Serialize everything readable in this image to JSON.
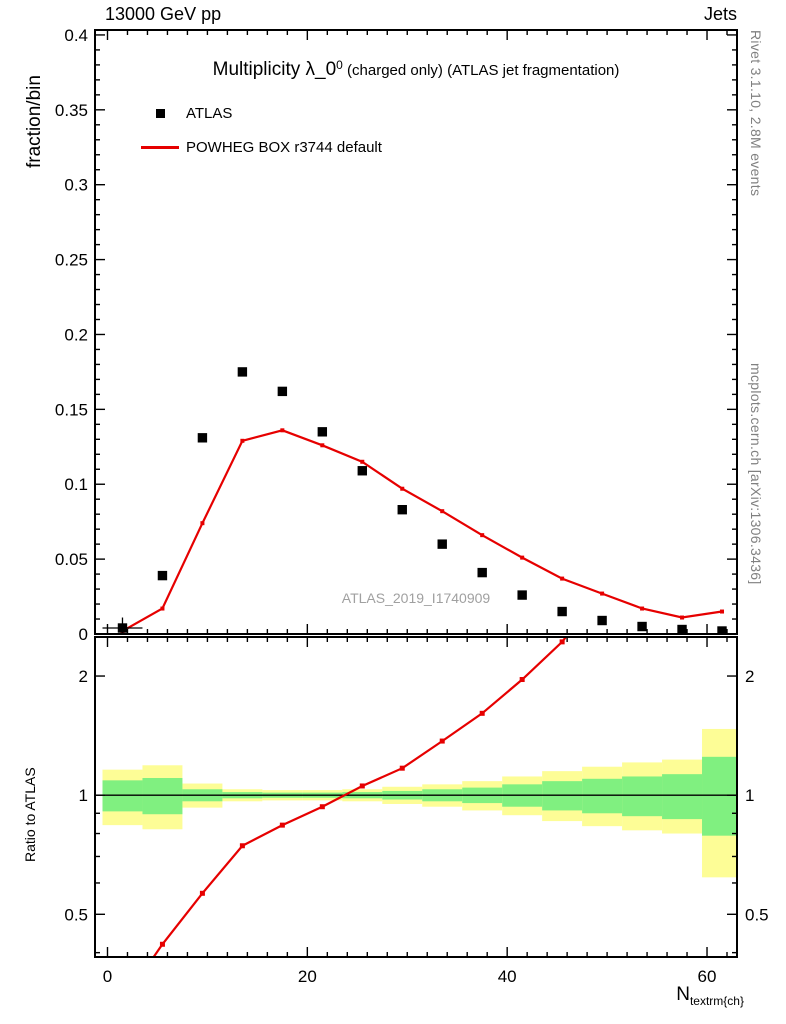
{
  "header": {
    "left_label": "13000 GeV pp",
    "right_label": "Jets"
  },
  "titles": {
    "main_prefix": "Multiplicity λ_0",
    "main_sup": "0",
    "main_suffix": " (charged only) (ATLAS jet fragmentation)",
    "watermark": "ATLAS_2019_I1740909"
  },
  "axes": {
    "y_label": "fraction/bin",
    "ratio_y_label": "Ratio to ATLAS",
    "x_label_base": "N",
    "x_label_sub": "textrm{ch}"
  },
  "legend": {
    "items": [
      {
        "label": "ATLAS",
        "marker": "black-square"
      },
      {
        "label": "POWHEG BOX r3744 default",
        "marker": "red-line"
      }
    ]
  },
  "sidebar": {
    "top_text": "Rivet 3.1.10,  2.8M events",
    "bottom_text": "mcplots.cern.ch [arXiv:1306.3436]"
  },
  "colors": {
    "accent_red": "#e60000",
    "marker_black": "#000000",
    "band_yellow": "#fdfd96",
    "band_green": "#80f080",
    "text_gray": "#808080",
    "watermark_gray": "#a0a0a0"
  },
  "chart_data": {
    "type": "line",
    "title": "Multiplicity λ_0^0 (charged only) (ATLAS jet fragmentation)",
    "xlabel": "N_ch",
    "x_bin_centers": [
      1.5,
      5.5,
      9.5,
      13.5,
      17.5,
      21.5,
      25.5,
      29.5,
      33.5,
      37.5,
      41.5,
      45.5,
      49.5,
      53.5,
      57.5,
      61.5
    ],
    "x_bin_edges": [
      -0.5,
      3.5,
      7.5,
      11.5,
      15.5,
      19.5,
      23.5,
      27.5,
      31.5,
      35.5,
      39.5,
      43.5,
      47.5,
      51.5,
      55.5,
      59.5,
      63.5
    ],
    "main_panel": {
      "ylabel": "fraction/bin",
      "xlim": [
        -1.25,
        63
      ],
      "ylim": [
        0,
        0.4033
      ],
      "yticks": [
        0,
        0.05,
        0.1,
        0.15,
        0.2,
        0.25,
        0.3,
        0.35,
        0.4
      ],
      "ytick_minor_step": 0.01,
      "xticks_major": [
        0,
        20,
        40,
        60
      ],
      "xtick_minor_step": 2,
      "series": [
        {
          "name": "ATLAS",
          "style": "scatter-square",
          "color": "#000000",
          "values": [
            0.004,
            0.039,
            0.131,
            0.175,
            0.162,
            0.135,
            0.109,
            0.083,
            0.06,
            0.041,
            0.026,
            0.015,
            0.009,
            0.005,
            0.003,
            0.002
          ]
        },
        {
          "name": "POWHEG BOX r3744 default",
          "style": "line-marker",
          "color": "#e60000",
          "values": [
            0.002,
            0.017,
            0.074,
            0.129,
            0.136,
            0.126,
            0.115,
            0.097,
            0.082,
            0.066,
            0.051,
            0.037,
            0.027,
            0.017,
            0.011,
            0.015
          ]
        }
      ]
    },
    "ratio_panel": {
      "ylabel": "Ratio to ATLAS",
      "yscale": "log",
      "ylim": [
        0.39,
        2.51
      ],
      "yticks_labeled": [
        0.5,
        1,
        2
      ],
      "yticks_all": [
        0.4,
        0.5,
        0.6,
        0.7,
        0.8,
        0.9,
        1,
        2
      ],
      "reference_line": 1,
      "ratio_values": [
        0.3,
        0.42,
        0.565,
        0.745,
        0.84,
        0.935,
        1.055,
        1.17,
        1.37,
        1.61,
        1.96,
        2.44,
        3.3,
        null,
        null,
        null
      ],
      "band_yellow_lo": [
        0.84,
        0.82,
        0.93,
        0.965,
        0.97,
        0.97,
        0.965,
        0.95,
        0.935,
        0.915,
        0.89,
        0.86,
        0.835,
        0.815,
        0.8,
        0.62
      ],
      "band_yellow_hi": [
        1.16,
        1.19,
        1.07,
        1.035,
        1.03,
        1.03,
        1.035,
        1.05,
        1.065,
        1.085,
        1.115,
        1.15,
        1.18,
        1.21,
        1.23,
        1.47
      ],
      "band_green_lo": [
        0.91,
        0.895,
        0.965,
        0.982,
        0.985,
        0.985,
        0.982,
        0.975,
        0.965,
        0.955,
        0.935,
        0.915,
        0.9,
        0.885,
        0.87,
        0.79
      ],
      "band_green_hi": [
        1.09,
        1.105,
        1.035,
        1.018,
        1.015,
        1.015,
        1.018,
        1.025,
        1.035,
        1.045,
        1.065,
        1.085,
        1.1,
        1.115,
        1.13,
        1.25
      ]
    }
  }
}
